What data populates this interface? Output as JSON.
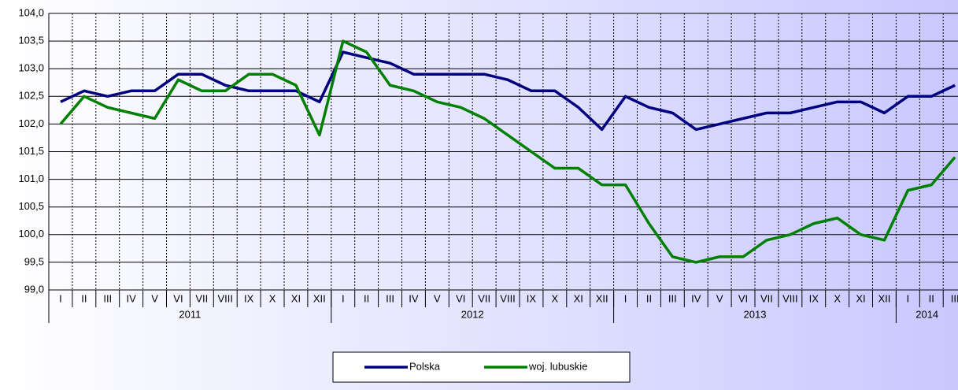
{
  "chart_data": {
    "type": "line",
    "groups": [
      {
        "label": "2011",
        "categories": [
          "I",
          "II",
          "III",
          "IV",
          "V",
          "VI",
          "VII",
          "VIII",
          "IX",
          "X",
          "XI",
          "XII"
        ]
      },
      {
        "label": "2012",
        "categories": [
          "I",
          "II",
          "III",
          "IV",
          "V",
          "VI",
          "VII",
          "VIII",
          "IX",
          "X",
          "XI",
          "XII"
        ]
      },
      {
        "label": "2013",
        "categories": [
          "I",
          "II",
          "III",
          "IV",
          "V",
          "VI",
          "VII",
          "VIII",
          "IX",
          "X",
          "XI",
          "XII"
        ]
      },
      {
        "label": "2014",
        "categories": [
          "I",
          "II",
          "III"
        ]
      }
    ],
    "series": [
      {
        "name": "Polska",
        "color": "#000080",
        "values": [
          102.4,
          102.6,
          102.5,
          102.6,
          102.6,
          102.9,
          102.9,
          102.7,
          102.6,
          102.6,
          102.6,
          102.4,
          103.3,
          103.2,
          103.1,
          102.9,
          102.9,
          102.9,
          102.9,
          102.8,
          102.6,
          102.6,
          102.3,
          101.9,
          102.5,
          102.3,
          102.2,
          101.9,
          102.0,
          102.1,
          102.2,
          102.2,
          102.3,
          102.4,
          102.4,
          102.2,
          102.5,
          102.5,
          102.7
        ]
      },
      {
        "name": "woj. lubuskie",
        "color": "#008000",
        "values": [
          102.0,
          102.5,
          102.3,
          102.2,
          102.1,
          102.8,
          102.6,
          102.6,
          102.9,
          102.9,
          102.7,
          101.8,
          103.5,
          103.3,
          102.7,
          102.6,
          102.4,
          102.3,
          102.1,
          101.8,
          101.5,
          101.2,
          101.2,
          100.9,
          100.9,
          100.2,
          99.6,
          99.5,
          99.6,
          99.6,
          99.9,
          100.0,
          100.2,
          100.3,
          100.0,
          99.9,
          100.8,
          100.9,
          101.4
        ]
      }
    ],
    "ylim": [
      99,
      104
    ],
    "yticks": [
      {
        "value": 99,
        "label": "99,0"
      },
      {
        "value": 99.5,
        "label": "99,5"
      },
      {
        "value": 100,
        "label": "100,0"
      },
      {
        "value": 100.5,
        "label": "100,5"
      },
      {
        "value": 101,
        "label": "101,0"
      },
      {
        "value": 101.5,
        "label": "101,5"
      },
      {
        "value": 102,
        "label": "102,0"
      },
      {
        "value": 102.5,
        "label": "102,5"
      },
      {
        "value": 103,
        "label": "103,0"
      },
      {
        "value": 103.5,
        "label": "103,5"
      },
      {
        "value": 104,
        "label": "104,0"
      }
    ],
    "grid": true,
    "legend": "bottom"
  }
}
